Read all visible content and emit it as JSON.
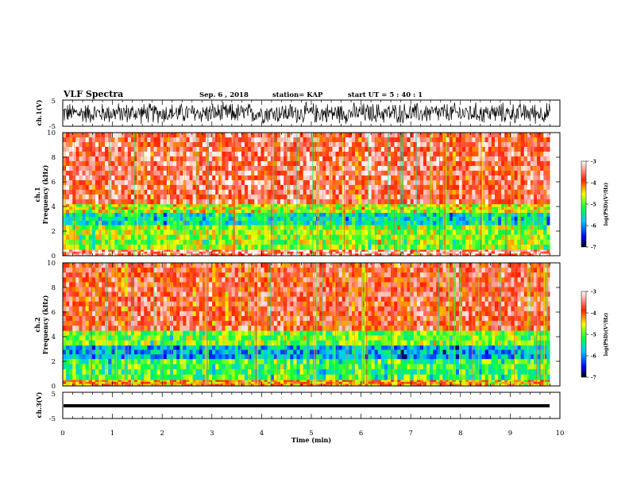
{
  "header": {
    "title": "VLF Spectra",
    "date": "Sep. 6 , 2018",
    "station": "station= KAP",
    "start": "start  UT =   5 : 40 : 1"
  },
  "chart_data": [
    {
      "type": "line",
      "panel": "ch.1 waveform",
      "ylabel": "ch.1(V)",
      "ylim": [
        -5,
        5
      ],
      "yticks": [
        "5",
        "-5"
      ],
      "x": [
        0,
        9.8
      ],
      "series": [
        {
          "description": "dense noisy waveform between about -4.5 V and 4.5 V, centered near 0 V",
          "y_range": [
            -4.5,
            4.5
          ]
        }
      ]
    },
    {
      "type": "heatmap",
      "panel": "ch.1 spectrogram",
      "ylabel": "ch.1\nFrequency (kHz)",
      "xlim": [
        0,
        9.8
      ],
      "ylim": [
        0,
        10
      ],
      "yticks": [
        "0",
        "2",
        "4",
        "6",
        "8",
        "10"
      ],
      "colorbar": {
        "label": "log(PSD)(V²/Hz)",
        "range": [
          -7,
          -3
        ],
        "ticks": [
          "-3",
          "-4",
          "-5",
          "-6",
          "-7"
        ]
      },
      "bands": [
        {
          "freq": [
            0,
            0.5
          ],
          "log_psd": -3.4
        },
        {
          "freq": [
            0.5,
            2.5
          ],
          "log_psd": -4.8
        },
        {
          "freq": [
            2.5,
            3.5
          ],
          "log_psd": -5.5
        },
        {
          "freq": [
            3.5,
            4.2
          ],
          "log_psd": -4.6
        },
        {
          "freq": [
            4.2,
            10
          ],
          "log_psd": -3.6
        }
      ]
    },
    {
      "type": "heatmap",
      "panel": "ch.2 spectrogram",
      "ylabel": "ch.2\nFrequency (kHz)",
      "xlim": [
        0,
        9.8
      ],
      "ylim": [
        0,
        10
      ],
      "yticks": [
        "0",
        "2",
        "4",
        "6",
        "8",
        "10"
      ],
      "colorbar": {
        "label": "log(PSD)(V²/Hz)",
        "range": [
          -7,
          -3
        ],
        "ticks": [
          "-3",
          "-4",
          "-5",
          "-6",
          "-7"
        ]
      },
      "bands": [
        {
          "freq": [
            0,
            0.5
          ],
          "log_psd": -4.2
        },
        {
          "freq": [
            0.5,
            2.2
          ],
          "log_psd": -5.1
        },
        {
          "freq": [
            2.2,
            3.3
          ],
          "log_psd": -5.8
        },
        {
          "freq": [
            3.3,
            4.5
          ],
          "log_psd": -4.9
        },
        {
          "freq": [
            4.5,
            10
          ],
          "log_psd": -3.7
        }
      ]
    },
    {
      "type": "line",
      "panel": "ch.3 waveform",
      "ylabel": "ch.3(V)",
      "ylim": [
        -5,
        5
      ],
      "yticks": [
        "5",
        "-5"
      ],
      "x": [
        0,
        9.8
      ],
      "series": [
        {
          "description": "flat thick trace",
          "y": -0.5
        }
      ]
    }
  ],
  "xaxis": {
    "label": "Time (min)",
    "range": [
      0,
      10
    ],
    "ticks": [
      "0",
      "1",
      "2",
      "3",
      "4",
      "5",
      "6",
      "7",
      "8",
      "9",
      "10"
    ]
  }
}
